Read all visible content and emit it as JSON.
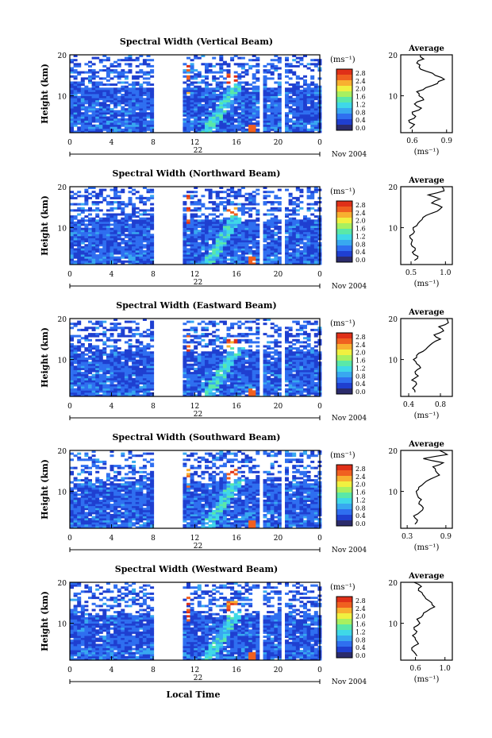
{
  "figure": {
    "xlabel": "Local Time",
    "date_label": "Nov 2004",
    "day_label": "22",
    "colorbar_unit": "(ms⁻¹)",
    "colorbar_ticks": [
      "2.8",
      "2.4",
      "2.0",
      "1.6",
      "1.2",
      "0.8",
      "0.4",
      "0.0"
    ],
    "colorbar_colors": [
      "#2b2b6b",
      "#1f3fd0",
      "#2f6ff0",
      "#38a8f0",
      "#3fd8e8",
      "#5ae8a8",
      "#a8f060",
      "#f0f040",
      "#f8b030",
      "#f06020",
      "#e03018"
    ],
    "average_title": "Average",
    "average_xunit": "(ms⁻¹)"
  },
  "chart_data": [
    {
      "type": "heatmap",
      "title": "Spectral Width (Vertical Beam)",
      "ylabel": "Height (km)",
      "x_ticks": [
        "0",
        "4",
        "8",
        "12",
        "16",
        "20",
        "0"
      ],
      "y_ticks": [
        "20",
        "10"
      ],
      "xlim": [
        0,
        24
      ],
      "ylim": [
        1,
        20
      ],
      "gaps": [
        [
          8,
          10.5
        ],
        [
          17.9,
          18.3
        ],
        [
          20.2,
          20.6
        ]
      ],
      "average": {
        "x_ticks": [
          "0.6",
          "0.9"
        ],
        "xlim": [
          0.5,
          0.95
        ],
        "y_ticks": [
          "20",
          "10"
        ],
        "height": [
          2,
          3,
          4,
          5,
          6,
          7,
          8,
          9,
          10,
          11,
          12,
          13,
          14,
          15,
          16,
          17,
          18,
          19,
          20
        ],
        "value": [
          0.58,
          0.62,
          0.57,
          0.63,
          0.6,
          0.68,
          0.62,
          0.7,
          0.66,
          0.64,
          0.72,
          0.82,
          0.88,
          0.8,
          0.72,
          0.66,
          0.64,
          0.7,
          0.67
        ]
      }
    },
    {
      "type": "heatmap",
      "title": "Spectral Width (Northward Beam)",
      "ylabel": "Height (km)",
      "x_ticks": [
        "0",
        "4",
        "8",
        "12",
        "16",
        "20",
        "0"
      ],
      "y_ticks": [
        "20",
        "10"
      ],
      "xlim": [
        0,
        24
      ],
      "ylim": [
        1,
        20
      ],
      "gaps": [
        [
          8,
          10.5
        ],
        [
          17.9,
          18.3
        ],
        [
          20.2,
          20.6
        ]
      ],
      "average": {
        "x_ticks": [
          "0.5",
          "1.0"
        ],
        "xlim": [
          0.35,
          1.1
        ],
        "y_ticks": [
          "20",
          "10"
        ],
        "height": [
          2,
          3,
          4,
          5,
          6,
          7,
          8,
          9,
          10,
          11,
          12,
          13,
          14,
          15,
          16,
          17,
          18,
          19,
          20
        ],
        "value": [
          0.55,
          0.6,
          0.52,
          0.56,
          0.5,
          0.52,
          0.48,
          0.55,
          0.53,
          0.6,
          0.66,
          0.72,
          0.88,
          0.95,
          0.8,
          0.92,
          0.75,
          0.98,
          0.95
        ]
      }
    },
    {
      "type": "heatmap",
      "title": "Spectral Width (Eastward Beam)",
      "ylabel": "Height (km)",
      "x_ticks": [
        "0",
        "4",
        "8",
        "12",
        "16",
        "20",
        "0"
      ],
      "y_ticks": [
        "20",
        "10"
      ],
      "xlim": [
        0,
        24
      ],
      "ylim": [
        1,
        20
      ],
      "gaps": [
        [
          8,
          10.5
        ],
        [
          17.9,
          18.3
        ],
        [
          20.2,
          20.6
        ]
      ],
      "average": {
        "x_ticks": [
          "0.4",
          "0.8"
        ],
        "xlim": [
          0.3,
          0.95
        ],
        "y_ticks": [
          "20",
          "10"
        ],
        "height": [
          2,
          3,
          4,
          5,
          6,
          7,
          8,
          9,
          10,
          11,
          12,
          13,
          14,
          15,
          16,
          17,
          18,
          19,
          20
        ],
        "value": [
          0.48,
          0.45,
          0.5,
          0.44,
          0.52,
          0.48,
          0.55,
          0.5,
          0.46,
          0.5,
          0.58,
          0.64,
          0.7,
          0.8,
          0.72,
          0.84,
          0.78,
          0.9,
          0.88
        ]
      }
    },
    {
      "type": "heatmap",
      "title": "Spectral Width (Southward Beam)",
      "ylabel": "Height (km)",
      "x_ticks": [
        "0",
        "4",
        "8",
        "12",
        "16",
        "20",
        "0"
      ],
      "y_ticks": [
        "20",
        "10"
      ],
      "xlim": [
        0,
        24
      ],
      "ylim": [
        1,
        20
      ],
      "gaps": [
        [
          8,
          10.5
        ],
        [
          17.9,
          18.3
        ],
        [
          20.2,
          20.6
        ]
      ],
      "average": {
        "x_ticks": [
          "0.3",
          "0.9"
        ],
        "xlim": [
          0.2,
          1.0
        ],
        "y_ticks": [
          "20",
          "10"
        ],
        "height": [
          2,
          3,
          4,
          5,
          6,
          7,
          8,
          9,
          10,
          11,
          12,
          13,
          14,
          15,
          16,
          17,
          18,
          19,
          20
        ],
        "value": [
          0.42,
          0.46,
          0.4,
          0.5,
          0.55,
          0.48,
          0.52,
          0.46,
          0.44,
          0.48,
          0.56,
          0.66,
          0.8,
          0.74,
          0.7,
          0.86,
          0.55,
          0.92,
          0.8
        ]
      }
    },
    {
      "type": "heatmap",
      "title": "Spectral Width (Westward Beam)",
      "ylabel": "Height (km)",
      "x_ticks": [
        "0",
        "4",
        "8",
        "12",
        "16",
        "20",
        "0"
      ],
      "y_ticks": [
        "20",
        "10"
      ],
      "xlim": [
        0,
        24
      ],
      "ylim": [
        1,
        20
      ],
      "gaps": [
        [
          8,
          10.5
        ],
        [
          17.9,
          18.3
        ],
        [
          20.2,
          20.6
        ]
      ],
      "average": {
        "x_ticks": [
          "0.6",
          "1.0"
        ],
        "xlim": [
          0.4,
          1.1
        ],
        "y_ticks": [
          "20",
          "10"
        ],
        "height": [
          2,
          3,
          4,
          5,
          6,
          7,
          8,
          9,
          10,
          11,
          12,
          13,
          14,
          15,
          16,
          17,
          18,
          19,
          20
        ],
        "value": [
          0.62,
          0.58,
          0.55,
          0.64,
          0.6,
          0.56,
          0.62,
          0.58,
          0.66,
          0.62,
          0.7,
          0.76,
          0.86,
          0.82,
          0.74,
          0.7,
          0.64,
          0.68,
          0.58
        ]
      }
    }
  ]
}
